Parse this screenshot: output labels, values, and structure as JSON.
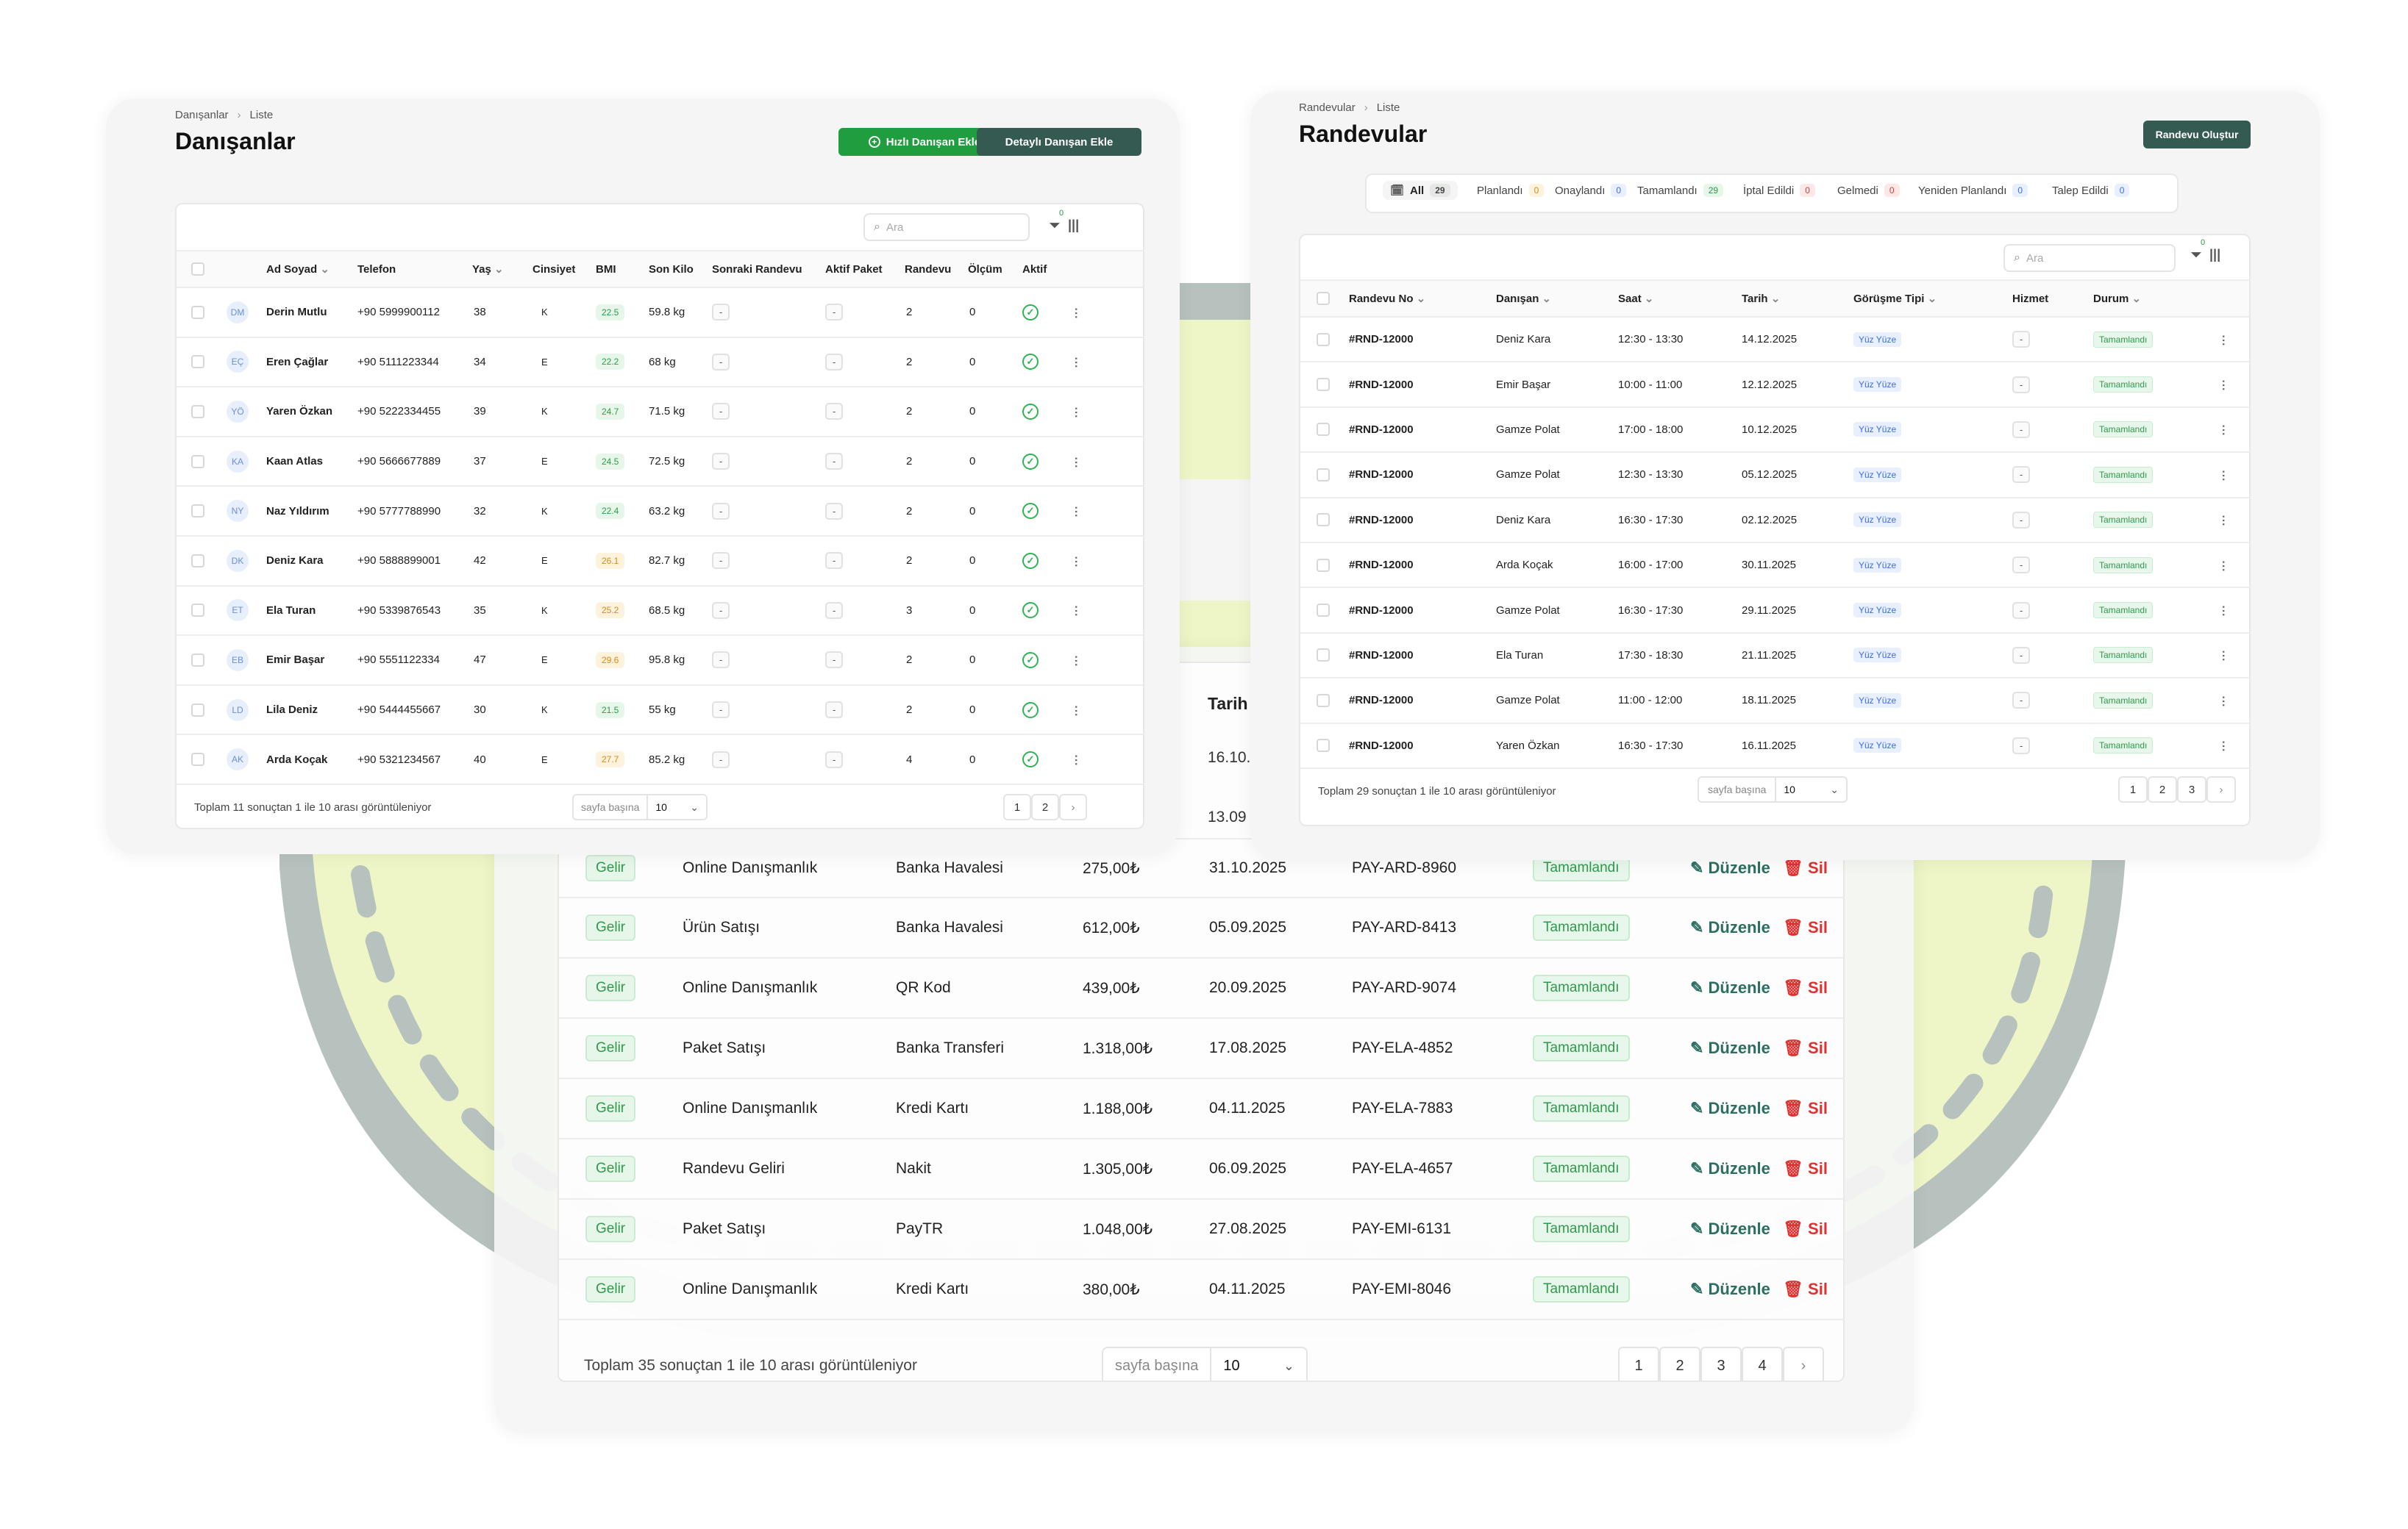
{
  "payments": {
    "partial_header": "Tarih",
    "partial_dates": [
      "16.10.",
      "13.09"
    ],
    "rows": [
      {
        "type": "Gelir",
        "desc": "Online Danışmanlık",
        "method": "Banka Havalesi",
        "amount": "275,00₺",
        "date": "31.10.2025",
        "ref": "PAY-ARD-8960",
        "status": "Tamamlandı"
      },
      {
        "type": "Gelir",
        "desc": "Ürün Satışı",
        "method": "Banka Havalesi",
        "amount": "612,00₺",
        "date": "05.09.2025",
        "ref": "PAY-ARD-8413",
        "status": "Tamamlandı"
      },
      {
        "type": "Gelir",
        "desc": "Online Danışmanlık",
        "method": "QR Kod",
        "amount": "439,00₺",
        "date": "20.09.2025",
        "ref": "PAY-ARD-9074",
        "status": "Tamamlandı"
      },
      {
        "type": "Gelir",
        "desc": "Paket Satışı",
        "method": "Banka Transferi",
        "amount": "1.318,00₺",
        "date": "17.08.2025",
        "ref": "PAY-ELA-4852",
        "status": "Tamamlandı"
      },
      {
        "type": "Gelir",
        "desc": "Online Danışmanlık",
        "method": "Kredi Kartı",
        "amount": "1.188,00₺",
        "date": "04.11.2025",
        "ref": "PAY-ELA-7883",
        "status": "Tamamlandı"
      },
      {
        "type": "Gelir",
        "desc": "Randevu Geliri",
        "method": "Nakit",
        "amount": "1.305,00₺",
        "date": "06.09.2025",
        "ref": "PAY-ELA-4657",
        "status": "Tamamlandı"
      },
      {
        "type": "Gelir",
        "desc": "Paket Satışı",
        "method": "PayTR",
        "amount": "1.048,00₺",
        "date": "27.08.2025",
        "ref": "PAY-EMI-6131",
        "status": "Tamamlandı"
      },
      {
        "type": "Gelir",
        "desc": "Online Danışmanlık",
        "method": "Kredi Kartı",
        "amount": "380,00₺",
        "date": "04.11.2025",
        "ref": "PAY-EMI-8046",
        "status": "Tamamlandı"
      }
    ],
    "edit_label": "Düzenle",
    "delete_label": "Sil",
    "footer_text": "Toplam 35 sonuçtan 1 ile 10 arası görüntüleniyor",
    "per_page_label": "sayfa başına",
    "per_page_value": "10",
    "pages": [
      "1",
      "2",
      "3",
      "4"
    ]
  },
  "clients": {
    "breadcrumb": [
      "Danışanlar",
      "Liste"
    ],
    "title": "Danışanlar",
    "quick_add_label": "Hızlı Danışan Ekle",
    "detailed_add_label": "Detaylı Danışan Ekle",
    "search_placeholder": "Ara",
    "filter_count": "0",
    "columns": [
      "Ad Soyad",
      "Telefon",
      "Yaş",
      "Cinsiyet",
      "BMI",
      "Son Kilo",
      "Sonraki Randevu",
      "Aktif Paket",
      "Randevu",
      "Ölçüm",
      "Aktif"
    ],
    "rows": [
      {
        "initials": "DM",
        "name": "Derin Mutlu",
        "phone": "+90 5999900112",
        "age": "38",
        "gender": "K",
        "bmi": "22.5",
        "bmi_level": "ok",
        "weight": "59.8 kg",
        "next": "-",
        "package": "-",
        "appointments": "2",
        "measurements": "0"
      },
      {
        "initials": "EÇ",
        "name": "Eren Çağlar",
        "phone": "+90 5111223344",
        "age": "34",
        "gender": "E",
        "bmi": "22.2",
        "bmi_level": "ok",
        "weight": "68 kg",
        "next": "-",
        "package": "-",
        "appointments": "2",
        "measurements": "0"
      },
      {
        "initials": "YÖ",
        "name": "Yaren Özkan",
        "phone": "+90 5222334455",
        "age": "39",
        "gender": "K",
        "bmi": "24.7",
        "bmi_level": "ok",
        "weight": "71.5 kg",
        "next": "-",
        "package": "-",
        "appointments": "2",
        "measurements": "0"
      },
      {
        "initials": "KA",
        "name": "Kaan Atlas",
        "phone": "+90 5666677889",
        "age": "37",
        "gender": "E",
        "bmi": "24.5",
        "bmi_level": "ok",
        "weight": "72.5 kg",
        "next": "-",
        "package": "-",
        "appointments": "2",
        "measurements": "0"
      },
      {
        "initials": "NY",
        "name": "Naz Yıldırım",
        "phone": "+90 5777788990",
        "age": "32",
        "gender": "K",
        "bmi": "22.4",
        "bmi_level": "ok",
        "weight": "63.2 kg",
        "next": "-",
        "package": "-",
        "appointments": "2",
        "measurements": "0"
      },
      {
        "initials": "DK",
        "name": "Deniz Kara",
        "phone": "+90 5888899001",
        "age": "42",
        "gender": "E",
        "bmi": "26.1",
        "bmi_level": "warn",
        "weight": "82.7 kg",
        "next": "-",
        "package": "-",
        "appointments": "2",
        "measurements": "0"
      },
      {
        "initials": "ET",
        "name": "Ela Turan",
        "phone": "+90 5339876543",
        "age": "35",
        "gender": "K",
        "bmi": "25.2",
        "bmi_level": "warn",
        "weight": "68.5 kg",
        "next": "-",
        "package": "-",
        "appointments": "3",
        "measurements": "0"
      },
      {
        "initials": "EB",
        "name": "Emir Başar",
        "phone": "+90 5551122334",
        "age": "47",
        "gender": "E",
        "bmi": "29.6",
        "bmi_level": "warn",
        "weight": "95.8 kg",
        "next": "-",
        "package": "-",
        "appointments": "2",
        "measurements": "0"
      },
      {
        "initials": "LD",
        "name": "Lila Deniz",
        "phone": "+90 5444455667",
        "age": "30",
        "gender": "K",
        "bmi": "21.5",
        "bmi_level": "ok",
        "weight": "55 kg",
        "next": "-",
        "package": "-",
        "appointments": "2",
        "measurements": "0"
      },
      {
        "initials": "AK",
        "name": "Arda Koçak",
        "phone": "+90 5321234567",
        "age": "40",
        "gender": "E",
        "bmi": "27.7",
        "bmi_level": "warn",
        "weight": "85.2 kg",
        "next": "-",
        "package": "-",
        "appointments": "4",
        "measurements": "0"
      }
    ],
    "footer_text": "Toplam 11 sonuçtan 1 ile 10 arası görüntüleniyor",
    "per_page_label": "sayfa başına",
    "per_page_value": "10",
    "pages": [
      "1",
      "2"
    ]
  },
  "appointments": {
    "breadcrumb": [
      "Randevular",
      "Liste"
    ],
    "title": "Randevular",
    "create_label": "Randevu Oluştur",
    "tabs": [
      {
        "label": "All",
        "count": "29"
      },
      {
        "label": "Planlandı",
        "count": "0"
      },
      {
        "label": "Onaylandı",
        "count": "0"
      },
      {
        "label": "Tamamlandı",
        "count": "29"
      },
      {
        "label": "İptal Edildi",
        "count": "0"
      },
      {
        "label": "Gelmedi",
        "count": "0"
      },
      {
        "label": "Yeniden Planlandı",
        "count": "0"
      },
      {
        "label": "Talep Edildi",
        "count": "0"
      }
    ],
    "search_placeholder": "Ara",
    "filter_count": "0",
    "columns": [
      "Randevu No",
      "Danışan",
      "Saat",
      "Tarih",
      "Görüşme Tipi",
      "Hizmet",
      "Durum"
    ],
    "rows": [
      {
        "no": "#RND-12000",
        "client": "Deniz Kara",
        "time": "12:30 - 13:30",
        "date": "14.12.2025",
        "type": "Yüz Yüze",
        "service": "-",
        "status": "Tamamlandı"
      },
      {
        "no": "#RND-12000",
        "client": "Emir Başar",
        "time": "10:00 - 11:00",
        "date": "12.12.2025",
        "type": "Yüz Yüze",
        "service": "-",
        "status": "Tamamlandı"
      },
      {
        "no": "#RND-12000",
        "client": "Gamze Polat",
        "time": "17:00 - 18:00",
        "date": "10.12.2025",
        "type": "Yüz Yüze",
        "service": "-",
        "status": "Tamamlandı"
      },
      {
        "no": "#RND-12000",
        "client": "Gamze Polat",
        "time": "12:30 - 13:30",
        "date": "05.12.2025",
        "type": "Yüz Yüze",
        "service": "-",
        "status": "Tamamlandı"
      },
      {
        "no": "#RND-12000",
        "client": "Deniz Kara",
        "time": "16:30 - 17:30",
        "date": "02.12.2025",
        "type": "Yüz Yüze",
        "service": "-",
        "status": "Tamamlandı"
      },
      {
        "no": "#RND-12000",
        "client": "Arda Koçak",
        "time": "16:00 - 17:00",
        "date": "30.11.2025",
        "type": "Yüz Yüze",
        "service": "-",
        "status": "Tamamlandı"
      },
      {
        "no": "#RND-12000",
        "client": "Gamze Polat",
        "time": "16:30 - 17:30",
        "date": "29.11.2025",
        "type": "Yüz Yüze",
        "service": "-",
        "status": "Tamamlandı"
      },
      {
        "no": "#RND-12000",
        "client": "Ela Turan",
        "time": "17:30 - 18:30",
        "date": "21.11.2025",
        "type": "Yüz Yüze",
        "service": "-",
        "status": "Tamamlandı"
      },
      {
        "no": "#RND-12000",
        "client": "Gamze Polat",
        "time": "11:00 - 12:00",
        "date": "18.11.2025",
        "type": "Yüz Yüze",
        "service": "-",
        "status": "Tamamlandı"
      },
      {
        "no": "#RND-12000",
        "client": "Yaren Özkan",
        "time": "16:30 - 17:30",
        "date": "16.11.2025",
        "type": "Yüz Yüze",
        "service": "-",
        "status": "Tamamlandı"
      }
    ],
    "footer_text": "Toplam 29 sonuçtan 1 ile 10 arası görüntüleniyor",
    "per_page_label": "sayfa başına",
    "per_page_value": "10",
    "pages": [
      "1",
      "2",
      "3"
    ]
  },
  "colors": {
    "primary_green": "#1f9d3f",
    "dark_teal": "#355a52",
    "accent_lime": "#eef6c4",
    "road_gray": "#b4bfbc"
  }
}
